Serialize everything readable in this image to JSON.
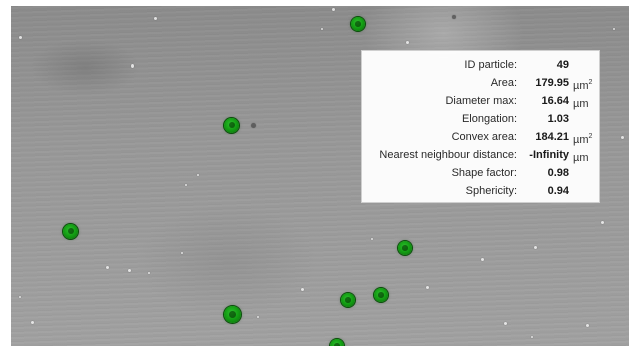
{
  "colors": {
    "particle_fill": "#14a014",
    "particle_outline": "#0b4f0b",
    "background_gray": "#999999",
    "panel_bg": "#ffffff"
  },
  "info_panel": {
    "rows": [
      {
        "label": "ID particle:",
        "value": "49",
        "unit": "",
        "unit_sup": ""
      },
      {
        "label": "Area:",
        "value": "179.95",
        "unit": "µm",
        "unit_sup": "2"
      },
      {
        "label": "Diameter max:",
        "value": "16.64",
        "unit": "µm",
        "unit_sup": ""
      },
      {
        "label": "Elongation:",
        "value": "1.03",
        "unit": "",
        "unit_sup": ""
      },
      {
        "label": "Convex area:",
        "value": "184.21",
        "unit": "µm",
        "unit_sup": "2"
      },
      {
        "label": "Nearest neighbour distance:",
        "value": "-Infinity",
        "unit": "µm",
        "unit_sup": ""
      },
      {
        "label": "Shape factor:",
        "value": "0.98",
        "unit": "",
        "unit_sup": ""
      },
      {
        "label": "Sphericity:",
        "value": "0.94",
        "unit": "",
        "unit_sup": ""
      }
    ]
  }
}
